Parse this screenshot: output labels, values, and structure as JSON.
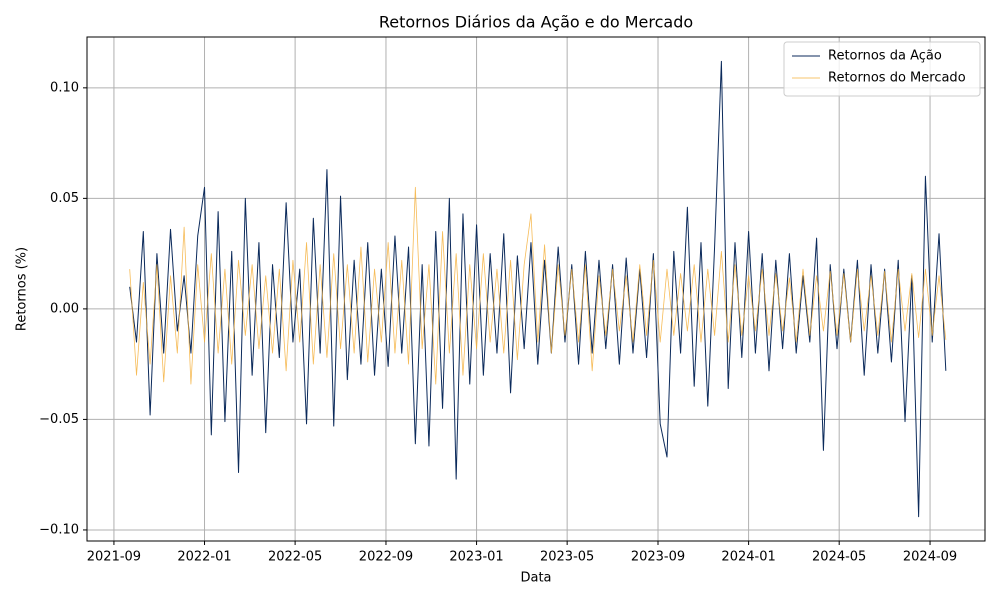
{
  "chart_data": {
    "type": "line",
    "title": "Retornos Diários da Ação e do Mercado",
    "xlabel": "Data",
    "ylabel": "Retornos (%)",
    "xlim": [
      2021.568,
      2024.869
    ],
    "ylim": [
      -0.105,
      0.123
    ],
    "xticks": [
      {
        "value": 2021.667,
        "label": "2021-09"
      },
      {
        "value": 2022.0,
        "label": "2022-01"
      },
      {
        "value": 2022.333,
        "label": "2022-05"
      },
      {
        "value": 2022.667,
        "label": "2022-09"
      },
      {
        "value": 2023.0,
        "label": "2023-01"
      },
      {
        "value": 2023.333,
        "label": "2023-05"
      },
      {
        "value": 2023.667,
        "label": "2023-09"
      },
      {
        "value": 2024.0,
        "label": "2024-01"
      },
      {
        "value": 2024.333,
        "label": "2024-05"
      },
      {
        "value": 2024.667,
        "label": "2024-09"
      }
    ],
    "yticks": [
      {
        "value": -0.1,
        "label": "−0.10"
      },
      {
        "value": -0.05,
        "label": "−0.05"
      },
      {
        "value": 0,
        "label": "0.00"
      },
      {
        "value": 0.05,
        "label": "0.05"
      },
      {
        "value": 0.1,
        "label": "0.10"
      }
    ],
    "grid": true,
    "legend": "upper right",
    "x": [
      2021.725,
      2021.75,
      2021.775,
      2021.8,
      2021.825,
      2021.85,
      2021.875,
      2021.9,
      2021.925,
      2021.95,
      2021.975,
      2022.0,
      2022.025,
      2022.05,
      2022.075,
      2022.1,
      2022.125,
      2022.15,
      2022.175,
      2022.2,
      2022.225,
      2022.25,
      2022.275,
      2022.3,
      2022.325,
      2022.35,
      2022.375,
      2022.4,
      2022.425,
      2022.45,
      2022.475,
      2022.5,
      2022.525,
      2022.55,
      2022.575,
      2022.6,
      2022.625,
      2022.65,
      2022.675,
      2022.7,
      2022.725,
      2022.75,
      2022.775,
      2022.8,
      2022.825,
      2022.85,
      2022.875,
      2022.9,
      2022.925,
      2022.95,
      2022.975,
      2023.0,
      2023.025,
      2023.05,
      2023.075,
      2023.1,
      2023.125,
      2023.15,
      2023.175,
      2023.2,
      2023.225,
      2023.25,
      2023.275,
      2023.3,
      2023.325,
      2023.35,
      2023.375,
      2023.4,
      2023.425,
      2023.45,
      2023.475,
      2023.5,
      2023.525,
      2023.55,
      2023.575,
      2023.6,
      2023.625,
      2023.65,
      2023.675,
      2023.7,
      2023.725,
      2023.75,
      2023.775,
      2023.8,
      2023.825,
      2023.85,
      2023.875,
      2023.9,
      2023.925,
      2023.95,
      2023.975,
      2024.0,
      2024.025,
      2024.05,
      2024.075,
      2024.1,
      2024.125,
      2024.15,
      2024.175,
      2024.2,
      2024.225,
      2024.25,
      2024.275,
      2024.3,
      2024.325,
      2024.35,
      2024.375,
      2024.4,
      2024.425,
      2024.45,
      2024.475,
      2024.5,
      2024.525,
      2024.55,
      2024.575,
      2024.6,
      2024.625,
      2024.65,
      2024.675,
      2024.7,
      2024.725
    ],
    "series": [
      {
        "name": "Retornos da Ação",
        "color": "#0b2a5b",
        "width": 1,
        "values": [
          0.01,
          -0.015,
          0.035,
          -0.048,
          0.025,
          -0.02,
          0.036,
          -0.01,
          0.015,
          -0.02,
          0.033,
          0.055,
          -0.057,
          0.044,
          -0.051,
          0.026,
          -0.074,
          0.05,
          -0.03,
          0.03,
          -0.056,
          0.02,
          -0.022,
          0.048,
          -0.015,
          0.018,
          -0.052,
          0.041,
          -0.02,
          0.063,
          -0.053,
          0.051,
          -0.032,
          0.022,
          -0.025,
          0.03,
          -0.03,
          0.018,
          -0.026,
          0.033,
          -0.02,
          0.028,
          -0.061,
          0.02,
          -0.062,
          0.035,
          -0.045,
          0.05,
          -0.077,
          0.043,
          -0.034,
          0.038,
          -0.03,
          0.025,
          -0.02,
          0.034,
          -0.038,
          0.024,
          -0.018,
          0.03,
          -0.025,
          0.022,
          -0.02,
          0.028,
          -0.015,
          0.02,
          -0.025,
          0.026,
          -0.02,
          0.022,
          -0.018,
          0.02,
          -0.025,
          0.023,
          -0.02,
          0.018,
          -0.022,
          0.025,
          -0.052,
          -0.067,
          0.026,
          -0.02,
          0.046,
          -0.035,
          0.03,
          -0.044,
          0.028,
          0.112,
          -0.036,
          0.03,
          -0.022,
          0.035,
          -0.02,
          0.025,
          -0.028,
          0.022,
          -0.018,
          0.025,
          -0.02,
          0.015,
          -0.015,
          0.032,
          -0.064,
          0.02,
          -0.018,
          0.018,
          -0.015,
          0.022,
          -0.03,
          0.02,
          -0.02,
          0.018,
          -0.024,
          0.022,
          -0.051,
          0.015,
          -0.094,
          0.06,
          -0.015,
          0.034,
          -0.028
        ]
      },
      {
        "name": "Retornos do Mercado",
        "color": "#f5b03c",
        "width": 0.8,
        "values": [
          0.018,
          -0.03,
          0.012,
          -0.025,
          0.02,
          -0.033,
          0.015,
          -0.02,
          0.037,
          -0.034,
          0.02,
          -0.015,
          0.025,
          -0.02,
          0.018,
          -0.025,
          0.022,
          -0.012,
          0.02,
          -0.018,
          0.015,
          -0.02,
          0.018,
          -0.028,
          0.022,
          -0.015,
          0.03,
          -0.025,
          0.02,
          -0.022,
          0.025,
          -0.018,
          0.02,
          -0.02,
          0.028,
          -0.024,
          0.018,
          -0.015,
          0.03,
          -0.02,
          0.022,
          -0.025,
          0.055,
          -0.018,
          0.02,
          -0.034,
          0.035,
          -0.02,
          0.025,
          -0.03,
          0.02,
          -0.018,
          0.025,
          -0.015,
          0.018,
          -0.02,
          0.022,
          -0.023,
          0.02,
          0.043,
          -0.015,
          0.029,
          -0.02,
          0.02,
          -0.012,
          0.018,
          -0.015,
          0.02,
          -0.028,
          0.015,
          -0.012,
          0.018,
          -0.01,
          0.015,
          -0.015,
          0.02,
          -0.012,
          0.022,
          -0.015,
          0.018,
          -0.012,
          0.016,
          -0.01,
          0.02,
          -0.015,
          0.018,
          -0.012,
          0.026,
          -0.015,
          0.02,
          -0.012,
          0.015,
          -0.01,
          0.018,
          -0.012,
          0.016,
          -0.01,
          0.014,
          -0.015,
          0.018,
          -0.012,
          0.015,
          -0.01,
          0.017,
          -0.012,
          0.016,
          -0.015,
          0.018,
          -0.01,
          0.015,
          -0.012,
          0.017,
          -0.015,
          0.018,
          -0.01,
          0.016,
          -0.013,
          0.018,
          -0.012,
          0.015,
          -0.014
        ]
      }
    ]
  }
}
